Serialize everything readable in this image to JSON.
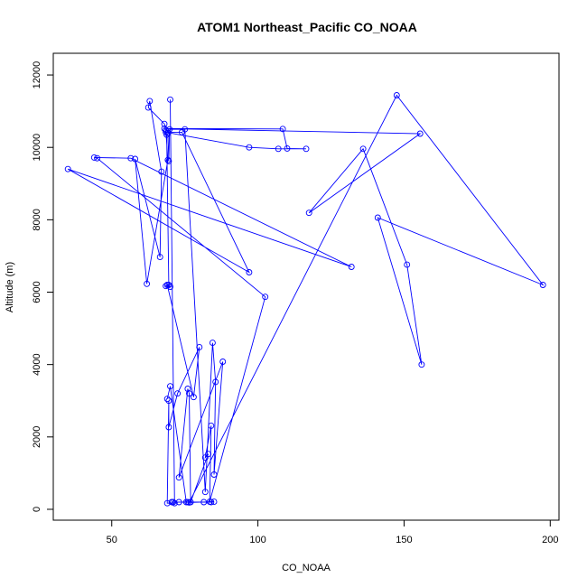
{
  "chart_data": {
    "type": "line",
    "title": "ATOM1 Northeast_Pacific CO_NOAA",
    "xlabel": "CO_NOAA",
    "ylabel": "Altitude (m)",
    "xlim": [
      30,
      203
    ],
    "ylim": [
      -300,
      12600
    ],
    "xticks": [
      50,
      100,
      150,
      200
    ],
    "yticks": [
      0,
      2000,
      4000,
      6000,
      8000,
      10000,
      12000
    ],
    "grid": false,
    "series_color": "#0000ff",
    "series": [
      {
        "x": [
          70.0,
          71.5,
          69.0,
          69.5,
          69.5,
          72.5,
          80.0,
          78.0,
          69.0,
          68.5,
          70.0,
          69.5,
          68.8,
          68.5,
          69.2,
          62.0,
          58.0,
          66.5,
          67.0,
          63.0,
          62.5,
          68.0,
          69.2,
          69.5,
          69.8,
          75.0,
          82.0,
          84.5,
          85.5,
          85.0,
          88.0,
          73.0,
          76.0,
          76.5,
          77.0,
          83.0,
          82.0,
          84.0,
          83.5,
          102.5,
          45.0,
          44.0,
          56.5,
          132.0,
          35.0,
          97.0,
          74.0,
          68.5,
          97.0,
          107.0,
          116.5,
          110.0,
          108.5,
          68.0,
          155.5,
          117.5,
          136.0,
          151.0,
          156.0,
          141.0,
          197.5,
          147.5,
          76.5,
          85.0,
          84.0,
          73.0,
          70.5,
          71.0,
          81.5,
          76.0,
          75.5,
          70.0,
          69.0
        ],
        "y": [
          11320,
          170,
          170,
          3000,
          2270,
          3200,
          4480,
          3100,
          6200,
          6170,
          6150,
          6200,
          10350,
          10480,
          9650,
          6230,
          9680,
          6970,
          9330,
          11280,
          11100,
          10650,
          10400,
          9620,
          10500,
          10500,
          480,
          4600,
          3520,
          960,
          4080,
          880,
          3330,
          3200,
          200,
          1530,
          1430,
          2310,
          210,
          5870,
          9700,
          9720,
          9700,
          6700,
          9400,
          6550,
          10420,
          10420,
          10000,
          9960,
          9960,
          9970,
          10510,
          10520,
          10380,
          8190,
          9960,
          6760,
          4000,
          8060,
          6200,
          11440,
          190,
          210,
          200,
          200,
          200,
          200,
          200,
          200,
          200,
          3400,
          3050
        ]
      }
    ]
  }
}
